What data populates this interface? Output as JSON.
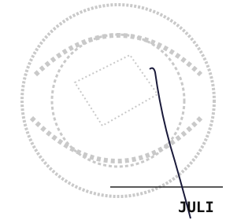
{
  "signature_block": {
    "text": "JULI"
  }
}
